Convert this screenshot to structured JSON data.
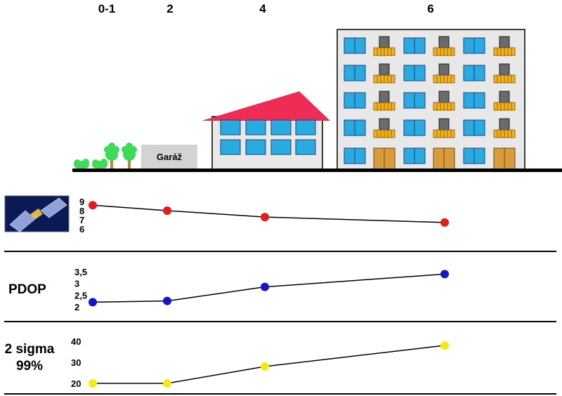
{
  "columns": [
    "0-1",
    "2",
    "4",
    "6"
  ],
  "garage_label": "Garáž",
  "colors": {
    "sky_window": "#29abe2",
    "window_frame": "#1a3f7a",
    "roof": "#ee2d57",
    "wall": "#e8e8e8",
    "tree": "#3ddb58",
    "trunk": "#c8832a",
    "balcony": "#f5b21b",
    "door": "#d99b3b",
    "chimney_block": "#6b6b6b",
    "ground": "#000000",
    "satellite_series": "#e41a1c",
    "pdop_series": "#1515c9",
    "sigma_series": "#f5ea12"
  },
  "chart_data": [
    {
      "type": "line",
      "title": "",
      "icon": "satellite-icon",
      "x": [
        "0-1",
        "2",
        "4",
        "6"
      ],
      "ylim": [
        6,
        9
      ],
      "yticks": [
        "9",
        "8",
        "7",
        "6"
      ],
      "series": [
        {
          "values": [
            8.6,
            8.0,
            7.3,
            6.7
          ]
        }
      ]
    },
    {
      "type": "line",
      "title": "PDOP",
      "x": [
        "0-1",
        "2",
        "4",
        "6"
      ],
      "ylim": [
        2,
        3.5
      ],
      "yticks": [
        "3,5",
        "3",
        "2,5",
        "2"
      ],
      "series": [
        {
          "values": [
            2.2,
            2.25,
            2.85,
            3.4
          ]
        }
      ]
    },
    {
      "type": "line",
      "title": "2 sigma 99%",
      "title_lines": [
        "2 sigma",
        "99%"
      ],
      "x": [
        "0-1",
        "2",
        "4",
        "6"
      ],
      "ylim": [
        20,
        40
      ],
      "yticks": [
        "40",
        "30",
        "20"
      ],
      "series": [
        {
          "values": [
            20,
            20,
            28,
            38
          ]
        }
      ]
    }
  ]
}
